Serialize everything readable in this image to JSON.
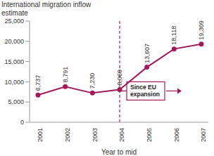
{
  "chart_data": {
    "type": "line",
    "title": "International migration inflow estimate",
    "x_label": "Year to mid",
    "categories": [
      "2001",
      "2002",
      "2003",
      "2004",
      "2005",
      "2006",
      "2007"
    ],
    "values": [
      6737,
      8791,
      7230,
      8060,
      13607,
      18118,
      19309
    ],
    "value_labels": [
      "6,737",
      "8,791",
      "7,230",
      "8,060",
      "13,607",
      "18,118",
      "19,309"
    ],
    "data_labels": true,
    "color": "#a3195b",
    "marker": "circle",
    "ylim": [
      0,
      25000
    ],
    "yticks": [
      0,
      {
        "value": 5000,
        "label": "5,000"
      },
      {
        "value": 10000,
        "label": "10,000"
      },
      {
        "value": 15000,
        "label": "15,000"
      },
      {
        "value": 20000,
        "label": "20,000"
      },
      {
        "value": 25000,
        "label": "25,000"
      }
    ],
    "grid": false,
    "annotation": {
      "text": "Since EU expansion",
      "x": "2004",
      "line_style": "dashed"
    }
  }
}
